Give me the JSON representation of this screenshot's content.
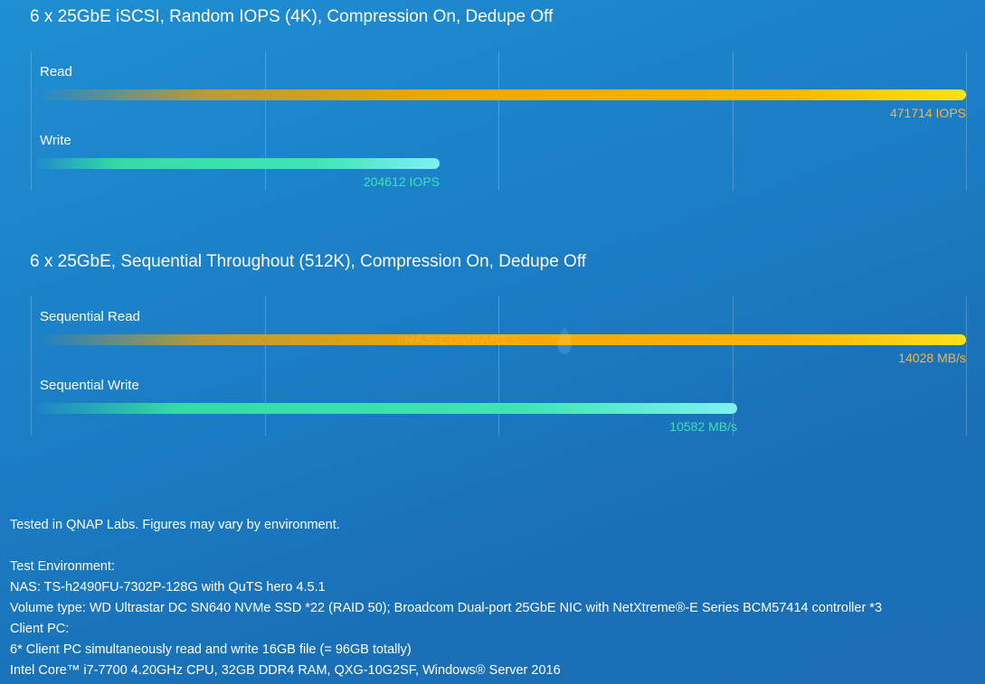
{
  "chart_data": [
    {
      "type": "bar",
      "orientation": "horizontal",
      "title": "6 x 25GbE iSCSI, Random IOPS (4K), Compression On, Dedupe Off",
      "categories": [
        "Read",
        "Write"
      ],
      "values": [
        471714,
        204612
      ],
      "value_labels": [
        "471714 IOPS",
        "204612 IOPS"
      ],
      "unit": "IOPS",
      "xlim": [
        0,
        471714
      ],
      "grid": true,
      "colors": [
        "#ffc21a",
        "#3fe6b3"
      ]
    },
    {
      "type": "bar",
      "orientation": "horizontal",
      "title": "6 x 25GbE, Sequential Throughout (512K), Compression On, Dedupe Off",
      "categories": [
        "Sequential Read",
        "Sequential Write"
      ],
      "values": [
        14028,
        10582
      ],
      "value_labels": [
        "14028 MB/s",
        "10582 MB/s"
      ],
      "unit": "MB/s",
      "xlim": [
        0,
        14028
      ],
      "grid": true,
      "colors": [
        "#ffc21a",
        "#3fe6b3"
      ]
    }
  ],
  "watermark": "NAS COMPARES",
  "footer": {
    "disclaimer": "Tested in QNAP Labs. Figures may vary by environment.",
    "env_heading": "Test Environment:",
    "nas": "NAS: TS-h2490FU-7302P-128G with QuTS hero 4.5.1",
    "volume": "Volume type: WD Ultrastar DC SN640 NVMe SSD *22 (RAID 50); Broadcom Dual-port 25GbE NIC with NetXtreme®-E Series BCM57414 controller *3",
    "client_heading": "Client PC:",
    "client_load": "6* Client PC simultaneously read and write 16GB file (= 96GB totally)",
    "client_spec": "Intel Core™ i7-7700 4.20GHz CPU, 32GB DDR4 RAM, QXG-10G2SF, Windows® Server 2016"
  }
}
